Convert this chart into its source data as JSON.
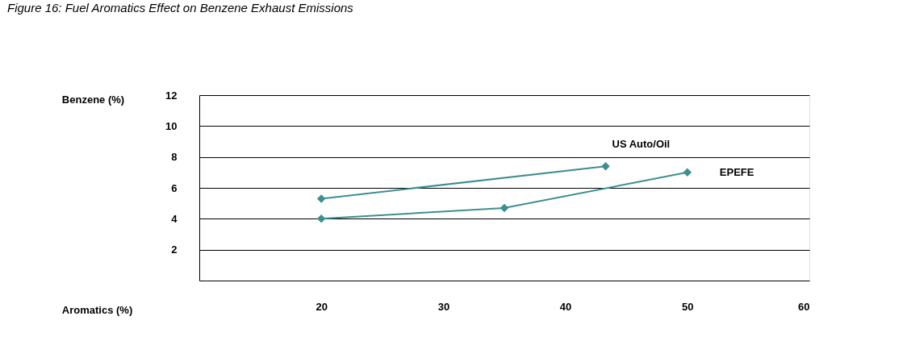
{
  "chart_data": {
    "type": "line",
    "title": "Figure 16: Fuel Aromatics Effect on Benzene Exhaust Emissions",
    "xlabel": "Aromatics (%)",
    "ylabel": "Benzene (%)",
    "series": [
      {
        "name": "US Auto/Oil",
        "color": "#3d8f8f",
        "x": [
          20,
          43.3
        ],
        "values": [
          5.3,
          7.4
        ]
      },
      {
        "name": "EPEFE",
        "color": "#3d8f8f",
        "x": [
          20,
          35,
          50
        ],
        "values": [
          4.0,
          4.7,
          7.0
        ]
      }
    ],
    "xlim": [
      10,
      60
    ],
    "xticks": [
      20,
      30,
      40,
      50,
      60
    ],
    "ylim": [
      0,
      12
    ],
    "yticks": [
      2,
      4,
      6,
      8,
      10,
      12
    ],
    "grid": "y",
    "marker": "diamond",
    "line_style": "solid",
    "legend": false
  }
}
